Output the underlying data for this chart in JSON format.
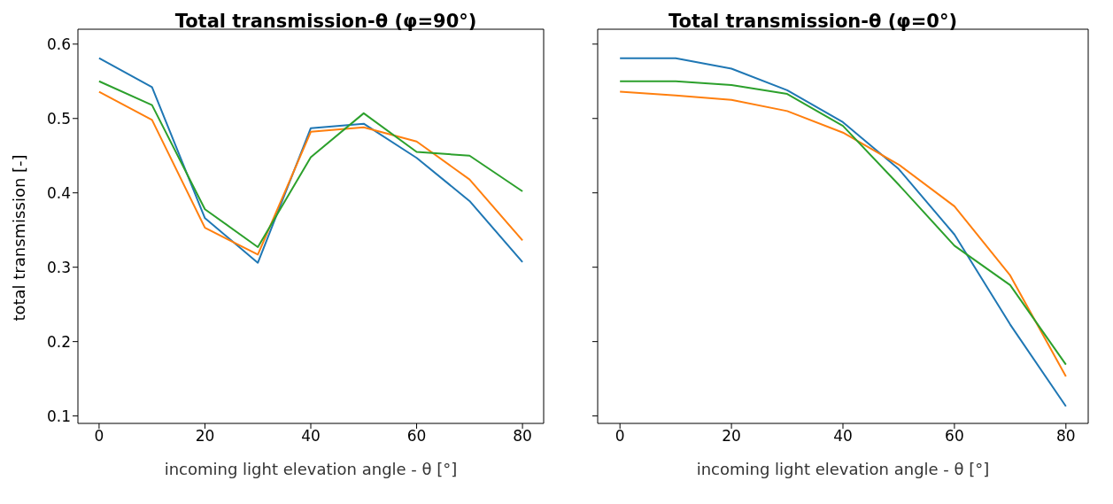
{
  "chart_data": [
    {
      "type": "line",
      "title": "Total transmission-θ (φ=90°)",
      "xlabel": "incoming light elevation angle - θ [°]",
      "ylabel": "total transmission [-]",
      "x": [
        0,
        10,
        20,
        30,
        40,
        50,
        60,
        70,
        80
      ],
      "series": [
        {
          "color": "#1f77b4",
          "values": [
            0.581,
            0.542,
            0.366,
            0.306,
            0.487,
            0.493,
            0.447,
            0.389,
            0.307
          ]
        },
        {
          "color": "#ff7f0e",
          "values": [
            0.536,
            0.498,
            0.353,
            0.317,
            0.482,
            0.488,
            0.469,
            0.418,
            0.336
          ]
        },
        {
          "color": "#2ca02c",
          "values": [
            0.55,
            0.518,
            0.378,
            0.327,
            0.448,
            0.507,
            0.455,
            0.45,
            0.402
          ]
        }
      ],
      "xlim": [
        -4,
        84
      ],
      "xticks": [
        0,
        20,
        40,
        60,
        80
      ],
      "ylim": [
        0.09,
        0.62
      ],
      "yticks": [
        0.1,
        0.2,
        0.3,
        0.4,
        0.5,
        0.6
      ],
      "grid": false,
      "legend": false,
      "marker": "none",
      "line_style": "solid"
    },
    {
      "type": "line",
      "title": "Total transmission-θ (φ=0°)",
      "xlabel": "incoming light elevation angle - θ [°]",
      "x": [
        0,
        10,
        20,
        30,
        40,
        50,
        60,
        70,
        80
      ],
      "series": [
        {
          "color": "#1f77b4",
          "values": [
            0.581,
            0.581,
            0.567,
            0.538,
            0.495,
            0.432,
            0.344,
            0.223,
            0.113
          ]
        },
        {
          "color": "#ff7f0e",
          "values": [
            0.536,
            0.531,
            0.525,
            0.51,
            0.481,
            0.438,
            0.382,
            0.289,
            0.153
          ]
        },
        {
          "color": "#2ca02c",
          "values": [
            0.55,
            0.55,
            0.545,
            0.533,
            0.49,
            0.411,
            0.329,
            0.276,
            0.169
          ]
        }
      ],
      "xlim": [
        -4,
        84
      ],
      "xticks": [
        0,
        20,
        40,
        60,
        80
      ],
      "ylim": [
        0.09,
        0.62
      ],
      "yticks": [
        0.1,
        0.2,
        0.3,
        0.4,
        0.5,
        0.6
      ],
      "grid": false,
      "legend": false,
      "marker": "none",
      "line_style": "solid",
      "tick_labels": "x"
    }
  ]
}
